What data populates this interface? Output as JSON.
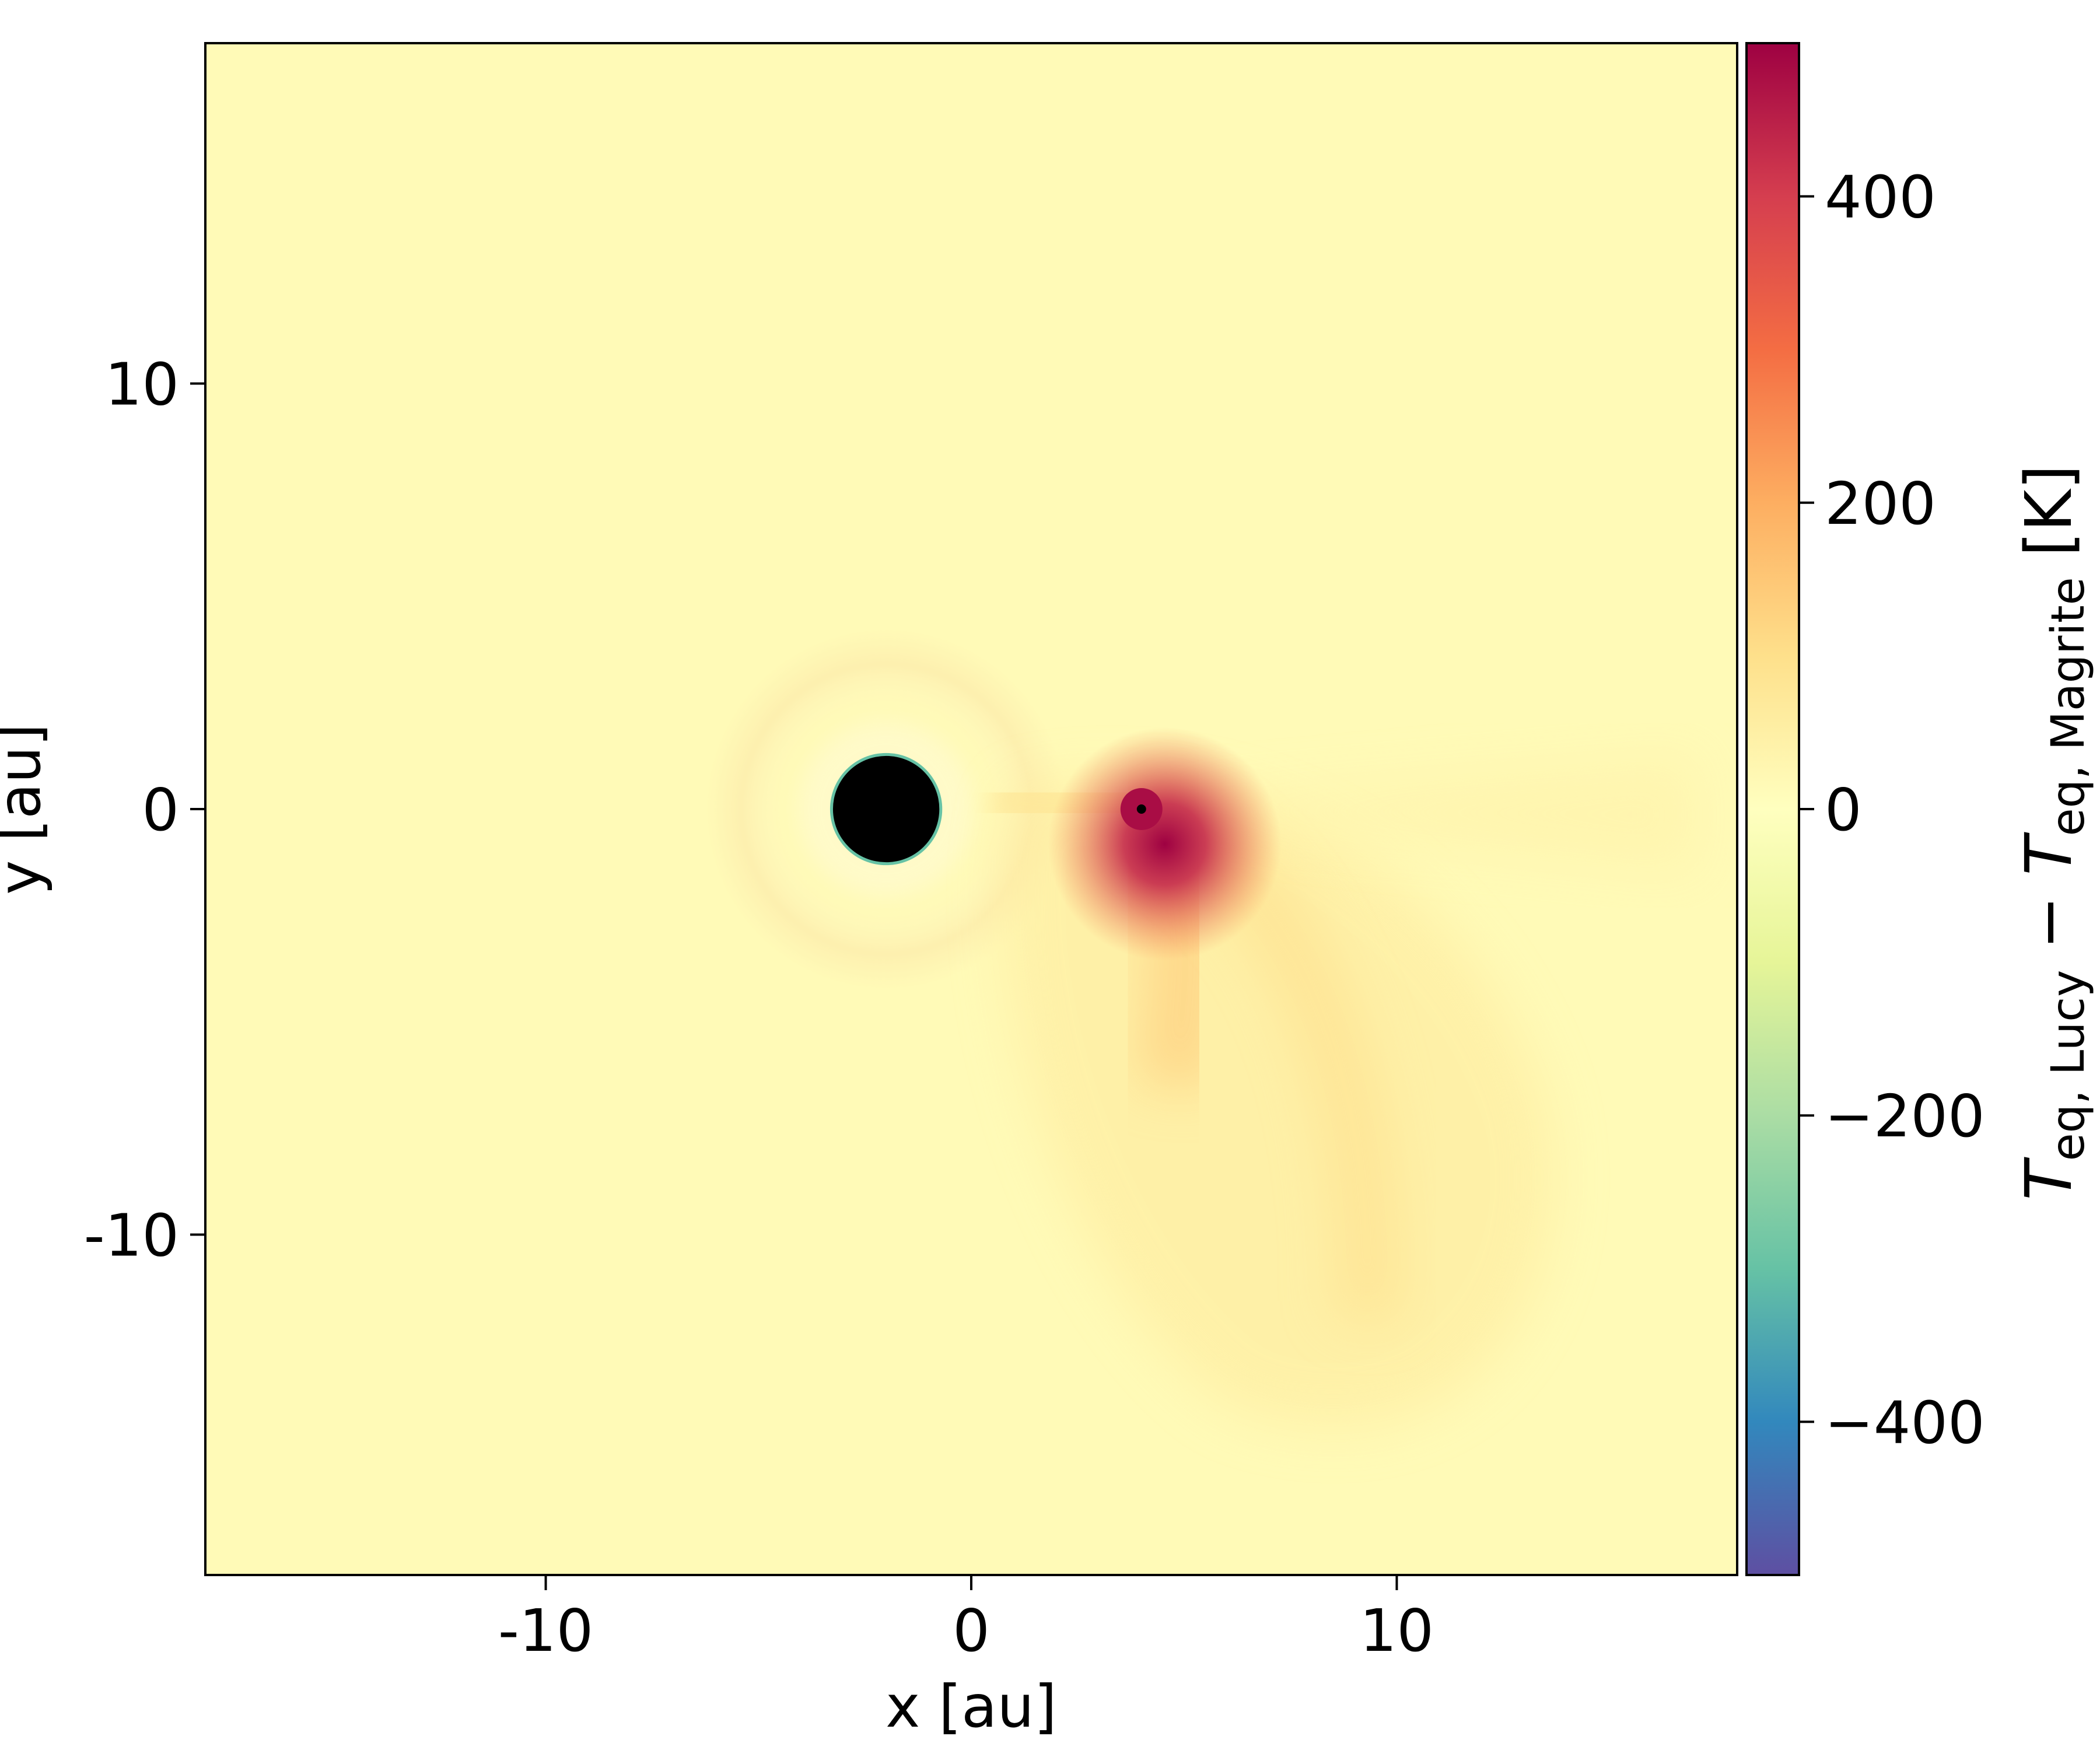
{
  "chart_data": {
    "type": "heatmap",
    "title": "",
    "xlabel": "x [au]",
    "ylabel": "y [au]",
    "xlim": [
      -18,
      18
    ],
    "ylim": [
      -18,
      18
    ],
    "xticks": [
      -10,
      0,
      10
    ],
    "yticks": [
      10,
      0,
      -10
    ],
    "xtick_labels": [
      "-10",
      "0",
      "10"
    ],
    "ytick_labels": [
      "10",
      "0",
      "-10"
    ],
    "colormap": "Spectral_r",
    "colorbar": {
      "label_main": "T",
      "label_sub1": "eq, Lucy",
      "label_op": " − ",
      "label_sub2": "eq, Magrite",
      "label_unit": " [K]",
      "range": [
        -500,
        500
      ],
      "ticks": [
        400,
        200,
        0,
        -200,
        -400
      ],
      "tick_labels": [
        "400",
        "200",
        "0",
        "−200",
        "−400"
      ],
      "stops": [
        {
          "value": -500,
          "color": "#5e4fa2"
        },
        {
          "value": -400,
          "color": "#3288bd"
        },
        {
          "value": -300,
          "color": "#66c2a5"
        },
        {
          "value": -200,
          "color": "#abdda4"
        },
        {
          "value": -100,
          "color": "#e6f598"
        },
        {
          "value": 0,
          "color": "#ffffbf"
        },
        {
          "value": 100,
          "color": "#fee08b"
        },
        {
          "value": 200,
          "color": "#fdae61"
        },
        {
          "value": 300,
          "color": "#f46d43"
        },
        {
          "value": 400,
          "color": "#d53e4f"
        },
        {
          "value": 500,
          "color": "#9e0142"
        }
      ]
    },
    "background_value": 15,
    "features": [
      {
        "name": "masked star",
        "x": -2.0,
        "y": 0.0,
        "radius": 1.25,
        "color": "#000000",
        "rim_color": "#66c2a5"
      },
      {
        "name": "companion",
        "x": 4.0,
        "y": 0.0,
        "peak_value": 480
      },
      {
        "name": "warm wake",
        "region_x": [
          1,
          12
        ],
        "region_y": [
          -15,
          1
        ],
        "peak_value": 150
      }
    ]
  }
}
